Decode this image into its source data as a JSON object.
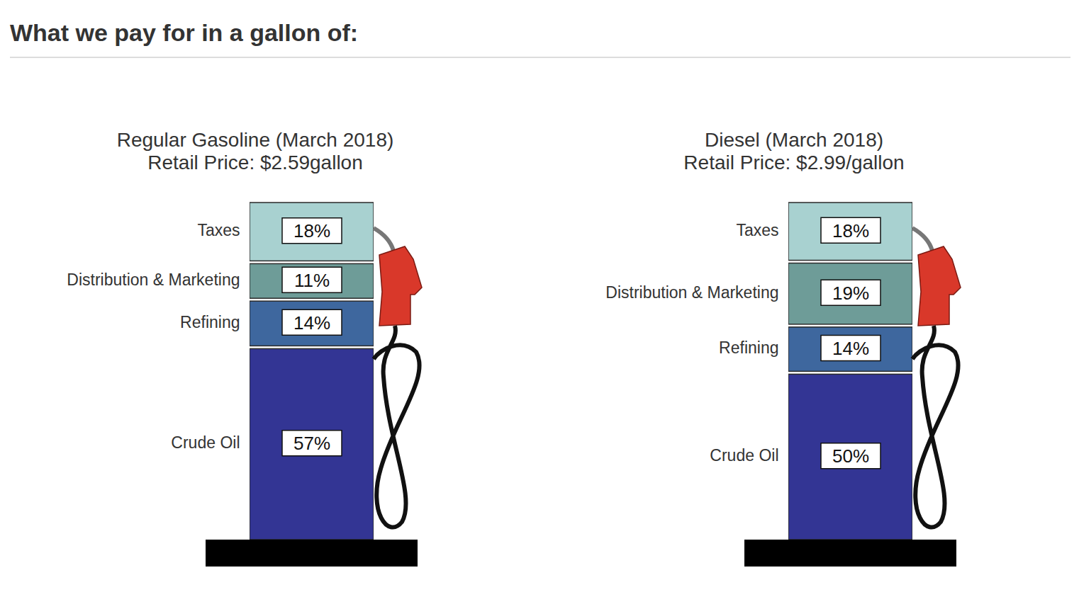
{
  "title": "What we pay for in a gallon of:",
  "chart_data": [
    {
      "type": "bar",
      "stacked": true,
      "data_labels": true,
      "tick_labels": false,
      "title": "Regular Gasoline (March 2018)",
      "subtitle": "Retail Price: $2.59gallon",
      "categories": [
        "Crude Oil",
        "Refining",
        "Distribution & Marketing",
        "Taxes"
      ],
      "values": [
        57,
        14,
        11,
        18
      ],
      "value_labels": [
        "57%",
        "14%",
        "11%",
        "18%"
      ],
      "colors": [
        "#333594",
        "#3e679e",
        "#6e9c98",
        "#a8d1d0"
      ],
      "ylim": [
        0,
        100
      ]
    },
    {
      "type": "bar",
      "stacked": true,
      "data_labels": true,
      "tick_labels": false,
      "title": "Diesel (March 2018)",
      "subtitle": "Retail Price: $2.99/gallon",
      "categories": [
        "Crude Oil",
        "Refining",
        "Distribution & Marketing",
        "Taxes"
      ],
      "values": [
        50,
        14,
        19,
        18
      ],
      "value_labels": [
        "50%",
        "14%",
        "19%",
        "18%"
      ],
      "colors": [
        "#333594",
        "#3e679e",
        "#6e9c98",
        "#a8d1d0"
      ],
      "ylim": [
        0,
        101
      ]
    }
  ]
}
